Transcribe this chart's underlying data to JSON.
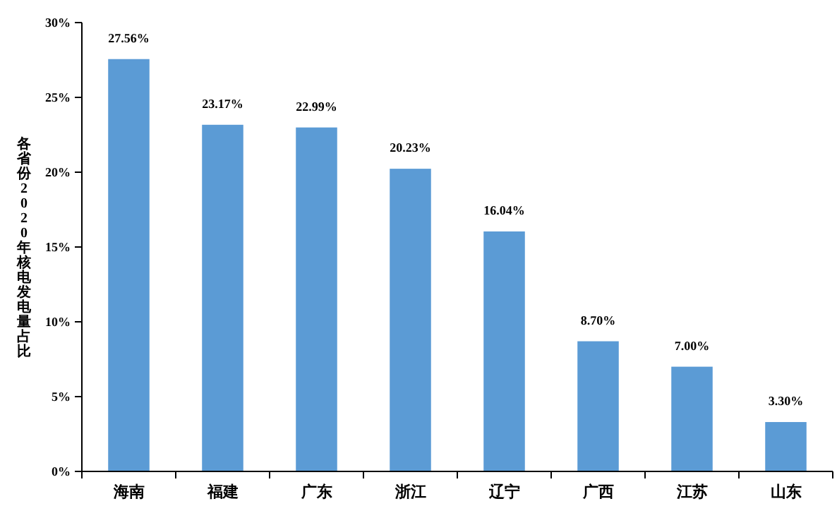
{
  "chart_data": {
    "type": "bar",
    "ylabel": "各省份2020年核电发电量占比",
    "categories": [
      "海南",
      "福建",
      "广东",
      "浙江",
      "辽宁",
      "广西",
      "江苏",
      "山东"
    ],
    "values": [
      27.56,
      23.17,
      22.99,
      20.23,
      16.04,
      8.7,
      7.0,
      3.3
    ],
    "value_labels": [
      "27.56%",
      "23.17%",
      "22.99%",
      "20.23%",
      "16.04%",
      "8.70%",
      "7.00%",
      "3.30%"
    ],
    "color": "#5b9bd5",
    "ylim": [
      0,
      30
    ],
    "yticks": [
      {
        "value": 0,
        "label": "0%"
      },
      {
        "value": 5,
        "label": "5%"
      },
      {
        "value": 10,
        "label": "10%"
      },
      {
        "value": 15,
        "label": "15%"
      },
      {
        "value": 20,
        "label": "20%"
      },
      {
        "value": 25,
        "label": "25%"
      },
      {
        "value": 30,
        "label": "30%"
      }
    ],
    "grid": false
  }
}
